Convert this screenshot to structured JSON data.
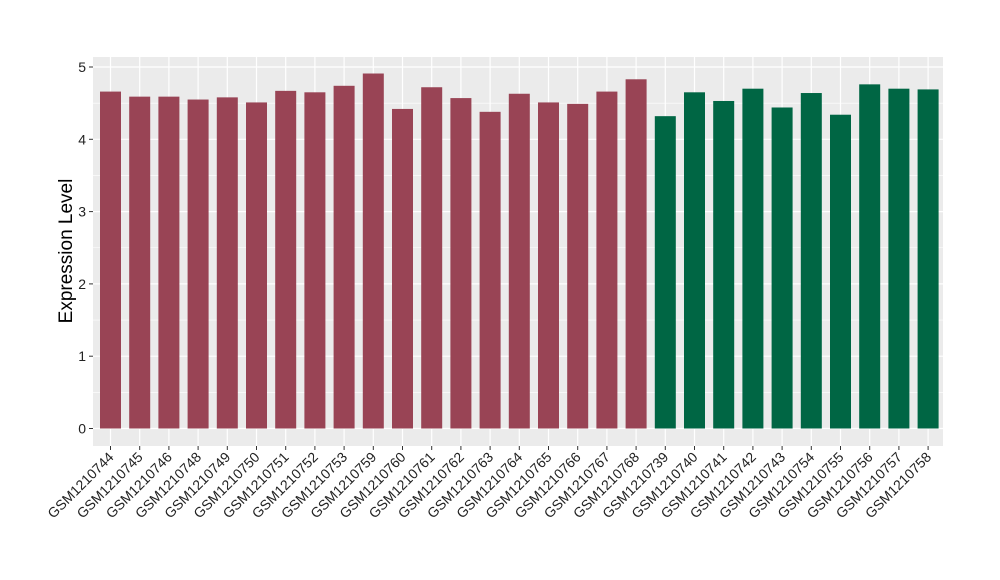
{
  "chart_data": {
    "type": "bar",
    "title": "",
    "xlabel": "",
    "ylabel": "Expression Level",
    "ylim": [
      0,
      5
    ],
    "yticks": [
      0,
      1,
      2,
      3,
      4,
      5
    ],
    "grid": true,
    "legend": "none",
    "categories": [
      "GSM1210744",
      "GSM1210745",
      "GSM1210746",
      "GSM1210748",
      "GSM1210749",
      "GSM1210750",
      "GSM1210751",
      "GSM1210752",
      "GSM1210753",
      "GSM1210759",
      "GSM1210760",
      "GSM1210761",
      "GSM1210762",
      "GSM1210763",
      "GSM1210764",
      "GSM1210765",
      "GSM1210766",
      "GSM1210767",
      "GSM1210768",
      "GSM1210739",
      "GSM1210740",
      "GSM1210741",
      "GSM1210742",
      "GSM1210743",
      "GSM1210754",
      "GSM1210755",
      "GSM1210756",
      "GSM1210757",
      "GSM1210758"
    ],
    "values": [
      4.66,
      4.59,
      4.59,
      4.55,
      4.58,
      4.51,
      4.67,
      4.65,
      4.74,
      4.91,
      4.42,
      4.72,
      4.57,
      4.38,
      4.63,
      4.51,
      4.49,
      4.66,
      4.83,
      4.32,
      4.65,
      4.53,
      4.7,
      4.44,
      4.64,
      4.34,
      4.76,
      4.7,
      4.69
    ],
    "groups": [
      "a",
      "a",
      "a",
      "a",
      "a",
      "a",
      "a",
      "a",
      "a",
      "a",
      "a",
      "a",
      "a",
      "a",
      "a",
      "a",
      "a",
      "a",
      "a",
      "b",
      "b",
      "b",
      "b",
      "b",
      "b",
      "b",
      "b",
      "b",
      "b"
    ],
    "group_colors": {
      "a": "#994455",
      "b": "#006644"
    },
    "panel_background": "#ebebeb",
    "grid_color": "#ffffff"
  }
}
